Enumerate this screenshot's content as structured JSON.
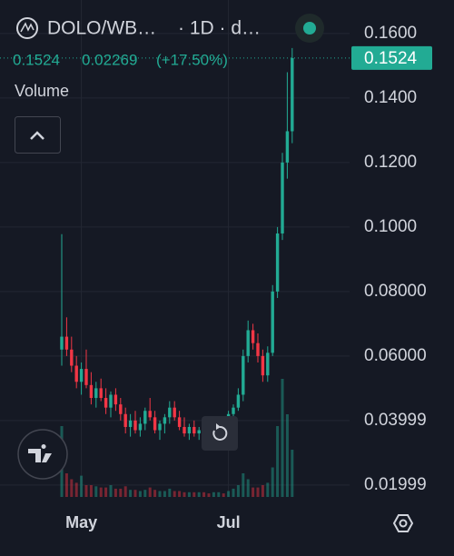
{
  "chart_data": {
    "type": "candlestick",
    "symbol": "DOLO/WB…",
    "interval": "· 1D · d…",
    "change": 0.02269,
    "change_percent": {
      "value": 17.5,
      "label": "(+17.50%)"
    },
    "volume_label": "Volume",
    "categories": [
      null,
      null,
      null,
      null,
      "May",
      null,
      null,
      null,
      null,
      null,
      null,
      null,
      null,
      null,
      null,
      null,
      null,
      null,
      null,
      null,
      null,
      null,
      null,
      null,
      null,
      null,
      null,
      null,
      null,
      null,
      null,
      null,
      null,
      null,
      "Jul",
      null,
      null,
      null,
      null,
      null,
      null,
      null,
      null,
      null,
      null,
      null,
      null,
      null
    ],
    "open": [
      0.062,
      0.066,
      0.062,
      0.057,
      0.052,
      0.056,
      0.051,
      0.047,
      0.05,
      0.047,
      0.044,
      0.048,
      0.045,
      0.042,
      0.038,
      0.04,
      0.037,
      0.039,
      0.043,
      0.041,
      0.037,
      0.039,
      0.041,
      0.044,
      0.041,
      0.038,
      0.036,
      0.038,
      0.036,
      0.037,
      0.035,
      0.034,
      0.037,
      0.039,
      0.038,
      0.042,
      0.044,
      0.048,
      0.06,
      0.068,
      0.064,
      0.06,
      0.054,
      0.061,
      0.08,
      0.098,
      0.12,
      0.1297
    ],
    "high": [
      0.0978,
      0.072,
      0.066,
      0.06,
      0.058,
      0.062,
      0.055,
      0.052,
      0.053,
      0.05,
      0.049,
      0.05,
      0.047,
      0.044,
      0.042,
      0.043,
      0.041,
      0.044,
      0.047,
      0.043,
      0.04,
      0.042,
      0.046,
      0.046,
      0.043,
      0.041,
      0.039,
      0.04,
      0.038,
      0.039,
      0.037,
      0.038,
      0.04,
      0.041,
      0.043,
      0.045,
      0.05,
      0.062,
      0.071,
      0.07,
      0.067,
      0.062,
      0.063,
      0.082,
      0.1,
      0.123,
      0.148,
      0.1555
    ],
    "low": [
      0.057,
      0.06,
      0.055,
      0.05,
      0.048,
      0.05,
      0.045,
      0.044,
      0.046,
      0.042,
      0.041,
      0.043,
      0.04,
      0.036,
      0.035,
      0.036,
      0.035,
      0.037,
      0.04,
      0.036,
      0.034,
      0.036,
      0.039,
      0.04,
      0.037,
      0.035,
      0.034,
      0.035,
      0.034,
      0.035,
      0.033,
      0.033,
      0.036,
      0.037,
      0.037,
      0.04,
      0.043,
      0.046,
      0.058,
      0.062,
      0.058,
      0.052,
      0.052,
      0.06,
      0.078,
      0.096,
      0.115,
      0.126
    ],
    "close": [
      0.066,
      0.062,
      0.057,
      0.052,
      0.056,
      0.051,
      0.047,
      0.05,
      0.047,
      0.044,
      0.048,
      0.045,
      0.042,
      0.038,
      0.04,
      0.037,
      0.039,
      0.043,
      0.041,
      0.037,
      0.039,
      0.041,
      0.044,
      0.041,
      0.038,
      0.036,
      0.038,
      0.036,
      0.037,
      0.035,
      0.034,
      0.037,
      0.039,
      0.038,
      0.042,
      0.044,
      0.048,
      0.06,
      0.068,
      0.064,
      0.06,
      0.054,
      0.061,
      0.08,
      0.098,
      0.12,
      0.1297,
      0.1524
    ],
    "volume": [
      60,
      20,
      15,
      12,
      18,
      10,
      10,
      9,
      8,
      8,
      10,
      7,
      7,
      9,
      6,
      6,
      5,
      6,
      8,
      6,
      5,
      5,
      7,
      5,
      5,
      4,
      4,
      4,
      4,
      4,
      3,
      4,
      4,
      3,
      5,
      7,
      10,
      20,
      15,
      8,
      8,
      10,
      12,
      25,
      60,
      100,
      70,
      40
    ],
    "up_color": "#22ab94",
    "down_color": "#f23645",
    "ylim": [
      0.0163,
      0.1704
    ],
    "yticks": [
      {
        "value": 0.16,
        "label": "0.1600"
      },
      {
        "value": 0.14,
        "label": "0.1400"
      },
      {
        "value": 0.12,
        "label": "0.1200"
      },
      {
        "value": 0.1,
        "label": "0.1000"
      },
      {
        "value": 0.08,
        "label": "0.08000"
      },
      {
        "value": 0.06,
        "label": "0.06000"
      },
      {
        "value": 0.03999,
        "label": "0.03999"
      },
      {
        "value": 0.01999,
        "label": "0.01999"
      }
    ],
    "grid": true
  }
}
